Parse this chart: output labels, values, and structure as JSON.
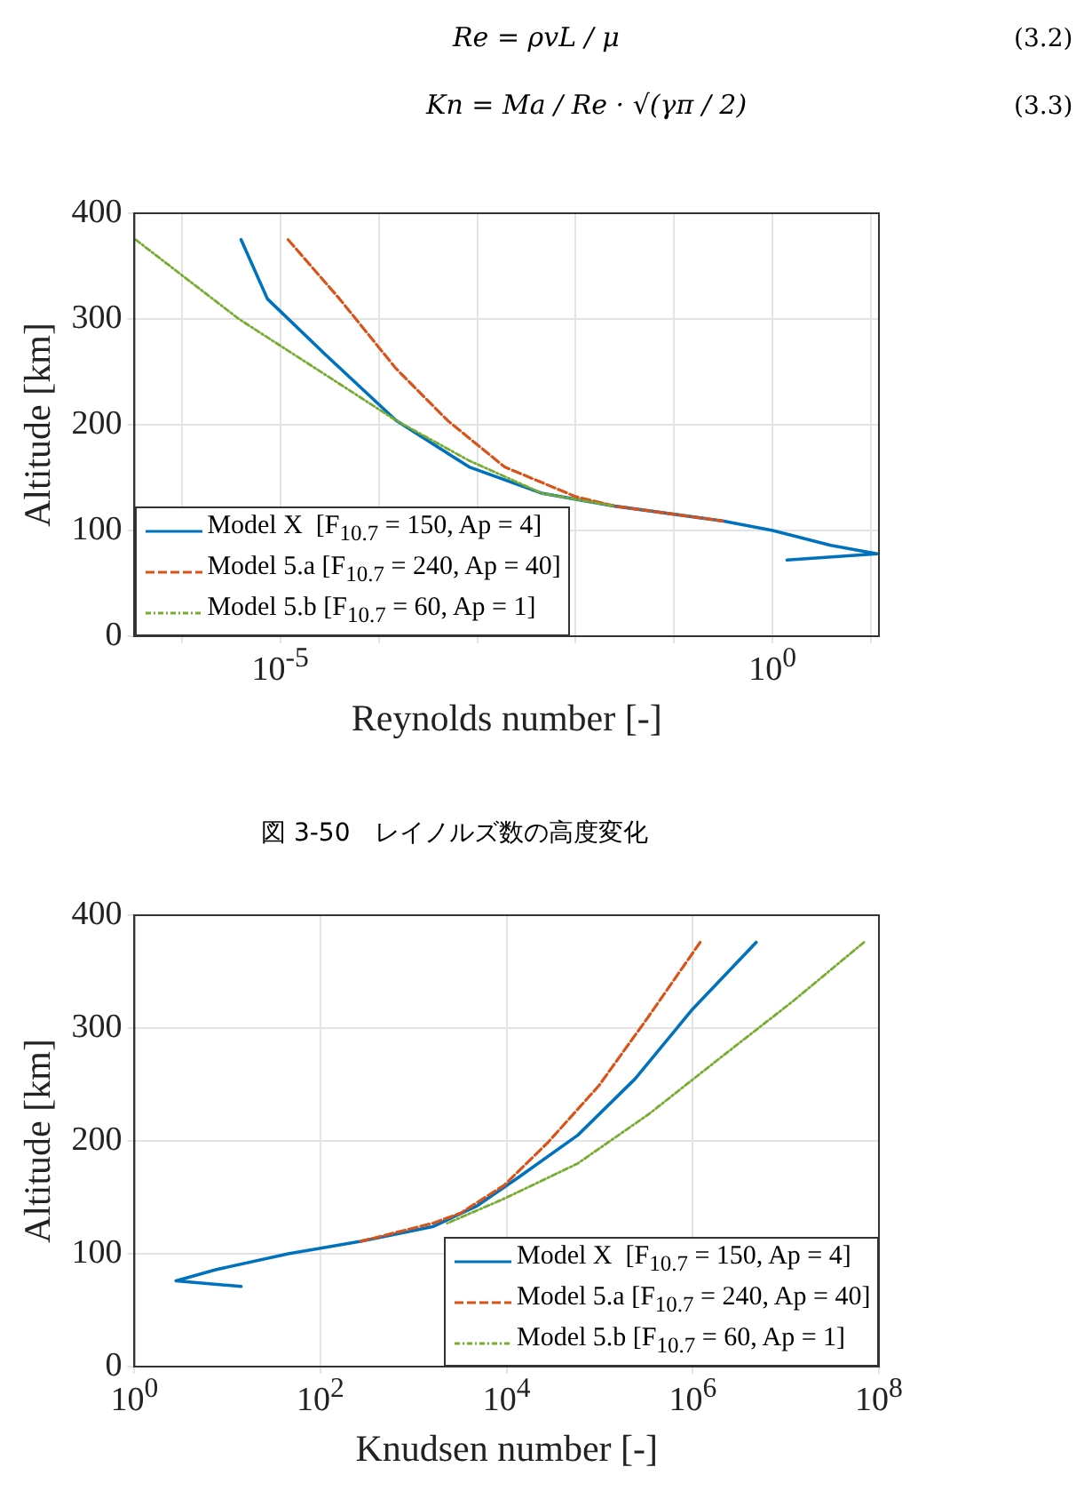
{
  "chart_data": [
    {
      "type": "line",
      "xlabel": "Reynolds number [-]",
      "ylabel": "Altitude [km]",
      "log": "x",
      "grid": true,
      "legend": "bottom left",
      "marker": "none",
      "annotations": [
        "Re = ρvL / μ",
        "(3.2)",
        "Kn = Ma / Re · √(γπ / 2)",
        "(3.3)",
        "図 3-50　レイノルズ数の高度変化"
      ],
      "xlim": [
        3.3e-07,
        12
      ],
      "ylim": [
        0,
        400
      ],
      "xticks": [
        {
          "value": 1e-06,
          "label": null
        },
        {
          "value": 1e-05,
          "label": "10$^{-5}$"
        },
        {
          "value": 0.0001,
          "label": null
        },
        {
          "value": 0.001,
          "label": null
        },
        {
          "value": 0.01,
          "label": null
        },
        {
          "value": 0.1,
          "label": null
        },
        {
          "value": 1,
          "label": "10$^{0}$"
        },
        {
          "value": 10,
          "label": null
        }
      ],
      "yticks": [
        0,
        100,
        200,
        300,
        400
      ],
      "series": [
        {
          "name": "Model X  [F$_{10.7}$ = 150, Ap = 4]",
          "color": "#0072bd",
          "line_style": "solid",
          "x": [
            4e-06,
            7.4e-06,
            2.9e-05,
            0.00015,
            0.00083,
            0.0046,
            0.025,
            0.31,
            1,
            3.9,
            11.5,
            1.4
          ],
          "values": [
            375,
            319,
            266,
            204,
            160,
            135,
            123,
            109,
            100,
            86,
            78,
            72
          ]
        },
        {
          "name": "Model 5.a [F$_{10.7}$ = 240, Ap = 40]",
          "color": "#d95319",
          "line_style": "dashed",
          "x": [
            1.2e-05,
            4e-05,
            0.00015,
            0.0005,
            0.0019,
            0.01,
            0.025,
            0.31
          ],
          "values": [
            375,
            319,
            253,
            204,
            160,
            132,
            123,
            109
          ]
        },
        {
          "name": "Model 5.b [F$_{10.7}$ = 60, Ap = 1]",
          "color": "#77ac30",
          "line_style": "dotted",
          "x": [
            3.4e-07,
            3.8e-06,
            2.9e-05,
            0.00015,
            0.00083,
            0.0046,
            0.025
          ],
          "values": [
            375,
            300,
            247,
            204,
            166,
            135,
            123
          ]
        }
      ]
    },
    {
      "type": "line",
      "xlabel": "Knudsen number [-]",
      "ylabel": "Altitude [km]",
      "log": "x",
      "grid": true,
      "legend": "bottom right",
      "marker": "none",
      "xlim": [
        1,
        100000000.0
      ],
      "ylim": [
        0,
        400
      ],
      "xticks": [
        {
          "value": 1,
          "label": "10$^{0}$"
        },
        {
          "value": 100,
          "label": "10$^{2}$"
        },
        {
          "value": 10000.0,
          "label": "10$^{4}$"
        },
        {
          "value": 1000000.0,
          "label": "10$^{6}$"
        },
        {
          "value": 100000000.0,
          "label": "10$^{8}$"
        }
      ],
      "yticks": [
        0,
        100,
        200,
        300,
        400
      ],
      "series": [
        {
          "name": "Model X  [F$_{10.7}$ = 150, Ap = 4]",
          "color": "#0072bd",
          "line_style": "solid",
          "x": [
            4800000.0,
            1000000.0,
            240000.0,
            58000.0,
            13000.0,
            4700.0,
            1600.0,
            270,
            45,
            7.6,
            2.8,
            14
          ],
          "values": [
            376,
            317,
            255,
            205,
            167,
            142,
            124,
            111,
            100,
            86,
            76,
            71
          ]
        },
        {
          "name": "Model 5.a [F$_{10.7}$ = 240, Ap = 40]",
          "color": "#d95319",
          "line_style": "dashed",
          "x": [
            1200000.0,
            340000.0,
            98000.0,
            28000.0,
            9500.0,
            3200.0,
            1600.0,
            270
          ],
          "values": [
            376,
            311,
            249,
            199,
            161,
            136,
            127,
            111
          ]
        },
        {
          "name": "Model 5.b [F$_{10.7}$ = 60, Ap = 1]",
          "color": "#77ac30",
          "line_style": "dotted",
          "x": [
            69000000.0,
            12000000.0,
            2000000.0,
            340000.0,
            58000.0,
            9500.0,
            2300.0
          ],
          "values": [
            376,
            324,
            274,
            224,
            180,
            149,
            127
          ]
        }
      ]
    }
  ]
}
